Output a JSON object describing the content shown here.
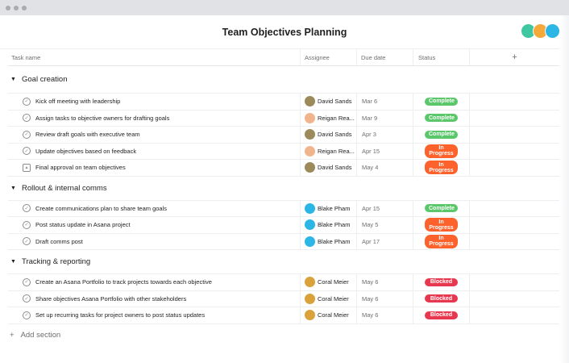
{
  "title": "Team Objectives Planning",
  "columns": {
    "task": "Task name",
    "assignee": "Assignee",
    "due": "Due date",
    "status": "Status",
    "add": "+"
  },
  "colors": {
    "Complete": "#5ac86a",
    "In Progress": "#fd612c",
    "Blocked": "#e8384f"
  },
  "sections": [
    {
      "name": "Goal creation",
      "tasks": [
        {
          "name": "Kick off meeting with leadership",
          "assignee": "David Sands",
          "due": "Mar 6",
          "status": "Complete",
          "icon": "check-circle"
        },
        {
          "name": "Assign tasks to objective owners for drafting goals",
          "assignee": "Reigan Rea...",
          "due": "Mar 9",
          "status": "Complete",
          "icon": "check-circle"
        },
        {
          "name": "Review draft goals with executive team",
          "assignee": "David Sands",
          "due": "Apr 3",
          "status": "Complete",
          "icon": "check-circle"
        },
        {
          "name": "Update objectives based on feedback",
          "assignee": "Reigan Rea...",
          "due": "Apr 15",
          "status": "In Progress",
          "icon": "check-circle"
        },
        {
          "name": "Final approval on team objectives",
          "assignee": "David Sands",
          "due": "May 4",
          "status": "In Progress",
          "icon": "approval"
        }
      ]
    },
    {
      "name": "Rollout & internal comms",
      "tasks": [
        {
          "name": "Create communications plan to share team goals",
          "assignee": "Blake Pham",
          "due": "Apr 15",
          "status": "Complete",
          "icon": "check-circle"
        },
        {
          "name": "Post status update in Asana project",
          "assignee": "Blake Pham",
          "due": "May 5",
          "status": "In Progress",
          "icon": "check-circle"
        },
        {
          "name": "Draft comms post",
          "assignee": "Blake Pham",
          "due": "Apr 17",
          "status": "In Progress",
          "icon": "check-circle"
        }
      ]
    },
    {
      "name": "Tracking & reporting",
      "tasks": [
        {
          "name": "Create an Asana Portfolio to track projects towards each objective",
          "assignee": "Coral Meier",
          "due": "May 6",
          "status": "Blocked",
          "icon": "check-circle"
        },
        {
          "name": "Share objectives Asana Portfolio with other stakeholders",
          "assignee": "Coral Meier",
          "due": "May 6",
          "status": "Blocked",
          "icon": "check-circle"
        },
        {
          "name": "Set up recurring tasks for project owners to post status updates",
          "assignee": "Coral Meier",
          "due": "May 6",
          "status": "Blocked",
          "icon": "check-circle"
        }
      ]
    }
  ],
  "add_section": "Add section",
  "add_icon": "+"
}
